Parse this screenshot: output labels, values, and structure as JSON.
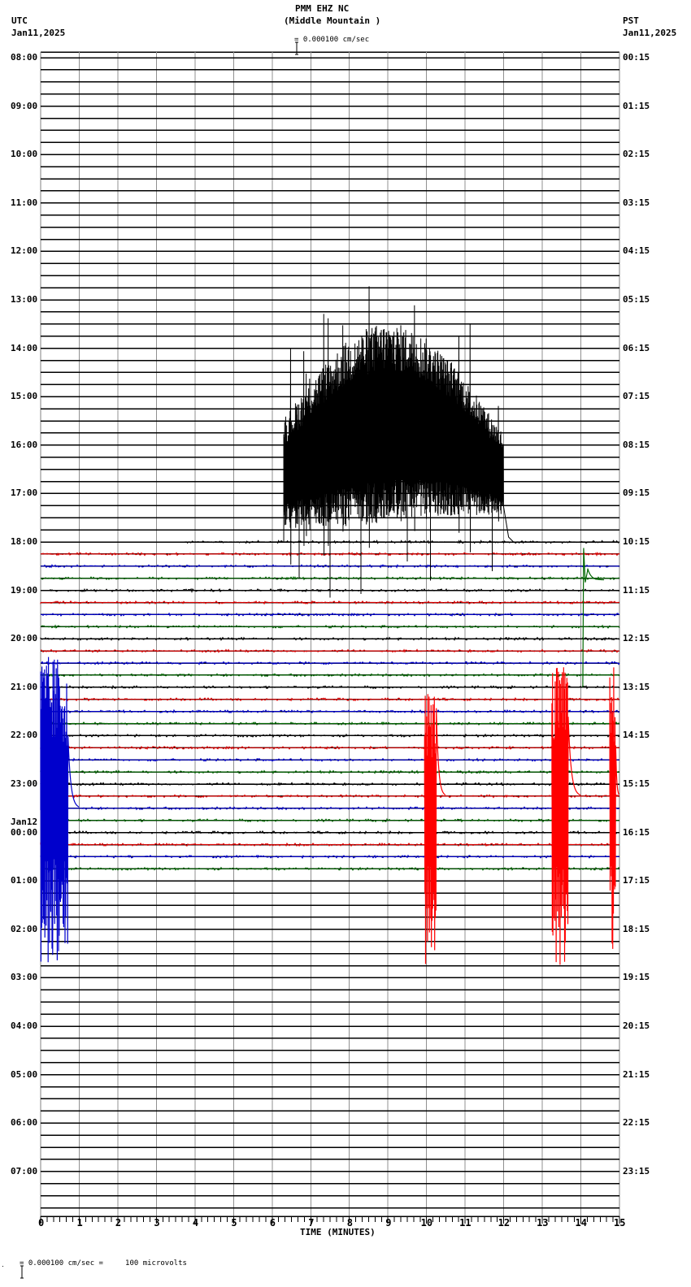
{
  "header": {
    "station": "PMM EHZ NC",
    "location": "(Middle Mountain )",
    "scale_text": "= 0.000100 cm/sec",
    "left_tz": "UTC",
    "left_date": "Jan11,2025",
    "right_tz": "PST",
    "right_date": "Jan11,2025"
  },
  "footer": {
    "scale_text": "= 0.000100 cm/sec =     100 microvolts",
    "prefix": "․"
  },
  "chart_data": {
    "type": "line",
    "title": "PMM EHZ NC (Middle Mountain ) helicorder",
    "xlabel": "TIME (MINUTES)",
    "ylabel": "",
    "xlim": [
      0,
      15
    ],
    "x_ticks": [
      "0",
      "1",
      "2",
      "3",
      "4",
      "5",
      "6",
      "7",
      "8",
      "9",
      "10",
      "11",
      "12",
      "13",
      "14",
      "15"
    ],
    "minor_ticks_per_minute": 6,
    "grid": true,
    "rows_per_hour": 4,
    "row_minutes": 15,
    "left_labels": [
      "08:00",
      "09:00",
      "10:00",
      "11:00",
      "12:00",
      "13:00",
      "14:00",
      "15:00",
      "16:00",
      "17:00",
      "18:00",
      "19:00",
      "20:00",
      "21:00",
      "22:00",
      "23:00",
      "00:00",
      "01:00",
      "02:00",
      "03:00",
      "04:00",
      "05:00",
      "06:00",
      "07:00"
    ],
    "left_date_change": {
      "label": "Jan12",
      "hour_index": 16
    },
    "right_labels": [
      "00:15",
      "01:15",
      "02:15",
      "03:15",
      "04:15",
      "05:15",
      "06:15",
      "07:15",
      "08:15",
      "09:15",
      "10:15",
      "11:15",
      "12:15",
      "13:15",
      "14:15",
      "15:15",
      "16:15",
      "17:15",
      "18:15",
      "19:15",
      "20:15",
      "21:15",
      "22:15",
      "23:15"
    ],
    "trace_colors": [
      "#000000",
      "#dd0000",
      "#0000cc",
      "#006600"
    ],
    "data_start_row": 40,
    "data_end_row": 67,
    "partial_first_row_start_minute": 3.7,
    "events": [
      {
        "name": "long-period noise burst",
        "color": "#000000",
        "row": 40,
        "start_min": 6.3,
        "end_min": 12.0,
        "min_y_rows": -20,
        "max_y_rows": 10.5
      },
      {
        "name": "green arrival",
        "color": "#006600",
        "row": 43,
        "start_min": 14.05,
        "end_min": 14.6,
        "max_y_rows": 2.5
      },
      {
        "name": "blue arrival",
        "color": "#0000cc",
        "row": 62,
        "start_min": 0.0,
        "end_min": 1.0,
        "max_y_rows": 14
      },
      {
        "name": "red arrival mid",
        "color": "#ff0000",
        "row": 61,
        "start_min": 9.95,
        "end_min": 10.5,
        "max_y_rows": 11
      },
      {
        "name": "red arrival right",
        "color": "#ff0000",
        "row": 61,
        "start_min": 13.25,
        "end_min": 14.0,
        "max_y_rows": 13.5
      },
      {
        "name": "red late right edge",
        "color": "#ff0000",
        "row": 61,
        "start_min": 14.75,
        "end_min": 15.0,
        "max_y_rows": 13.5
      }
    ]
  }
}
